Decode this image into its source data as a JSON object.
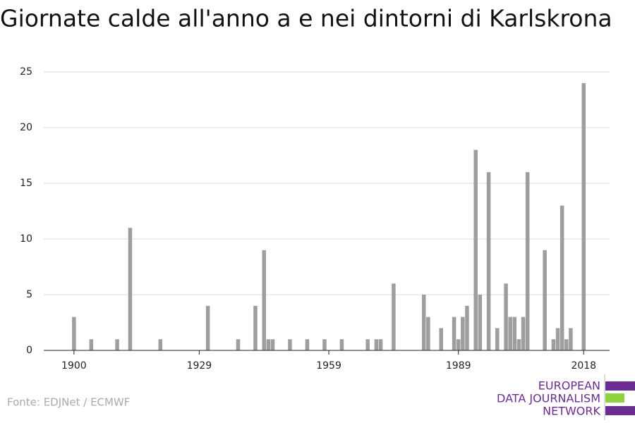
{
  "chart_data": {
    "type": "bar",
    "title": "Giornate calde all'anno a e nei dintorni di Karlskrona",
    "source": "Fonte: EDJNet / ECMWF",
    "logo": [
      "EUROPEAN",
      "DATA JOURNALISM",
      "NETWORK"
    ],
    "color": "#9e9e9e",
    "grid": true,
    "x": [
      1900,
      1901,
      1902,
      1903,
      1904,
      1905,
      1906,
      1907,
      1908,
      1909,
      1910,
      1911,
      1912,
      1913,
      1914,
      1915,
      1916,
      1917,
      1918,
      1919,
      1920,
      1921,
      1922,
      1923,
      1924,
      1925,
      1926,
      1927,
      1928,
      1929,
      1930,
      1931,
      1932,
      1933,
      1934,
      1935,
      1936,
      1937,
      1938,
      1939,
      1940,
      1941,
      1942,
      1943,
      1944,
      1945,
      1946,
      1947,
      1948,
      1949,
      1950,
      1951,
      1952,
      1953,
      1954,
      1955,
      1956,
      1957,
      1958,
      1959,
      1960,
      1961,
      1962,
      1963,
      1964,
      1965,
      1966,
      1967,
      1968,
      1969,
      1970,
      1971,
      1972,
      1973,
      1974,
      1975,
      1976,
      1977,
      1978,
      1979,
      1980,
      1981,
      1982,
      1983,
      1984,
      1985,
      1986,
      1987,
      1988,
      1989,
      1990,
      1991,
      1992,
      1993,
      1994,
      1995,
      1996,
      1997,
      1998,
      1999,
      2000,
      2001,
      2002,
      2003,
      2004,
      2005,
      2006,
      2007,
      2008,
      2009,
      2010,
      2011,
      2012,
      2013,
      2014,
      2015,
      2016,
      2017,
      2018
    ],
    "values": [
      3,
      0,
      0,
      0,
      1,
      0,
      0,
      0,
      0,
      0,
      1,
      0,
      0,
      11,
      0,
      0,
      0,
      0,
      0,
      0,
      1,
      0,
      0,
      0,
      0,
      0,
      0,
      0,
      0,
      0,
      0,
      4,
      0,
      0,
      0,
      0,
      0,
      0,
      1,
      0,
      0,
      0,
      4,
      0,
      9,
      1,
      1,
      0,
      0,
      0,
      1,
      0,
      0,
      0,
      1,
      0,
      0,
      0,
      1,
      0,
      0,
      0,
      1,
      0,
      0,
      0,
      0,
      0,
      1,
      0,
      1,
      1,
      0,
      0,
      6,
      0,
      0,
      0,
      0,
      0,
      0,
      5,
      3,
      0,
      0,
      2,
      0,
      0,
      3,
      1,
      3,
      4,
      0,
      18,
      5,
      0,
      16,
      0,
      2,
      0,
      6,
      3,
      3,
      1,
      3,
      16,
      0,
      0,
      0,
      9,
      0,
      1,
      2,
      13,
      1,
      2,
      0,
      0,
      24
    ],
    "xlim": [
      1893,
      2024
    ],
    "xticks": [
      1900,
      1929,
      1959,
      1989,
      2018
    ],
    "ylim": [
      0,
      25
    ],
    "yticks": [
      0,
      5,
      10,
      15,
      20,
      25
    ]
  }
}
